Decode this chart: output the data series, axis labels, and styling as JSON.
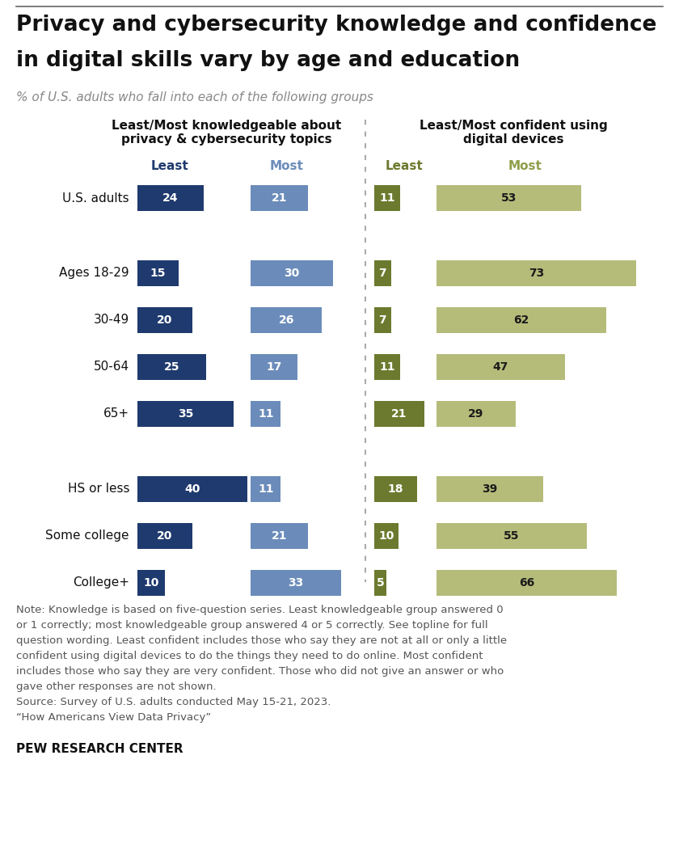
{
  "title_line1": "Privacy and cybersecurity knowledge and confidence",
  "title_line2": "in digital skills vary by age and education",
  "subtitle": "% of U.S. adults who fall into each of the following groups",
  "left_section_title": "Least/Most knowledgeable about\nprivacy & cybersecurity topics",
  "right_section_title": "Least/Most confident using\ndigital devices",
  "left_least_label": "Least",
  "left_most_label": "Most",
  "right_least_label": "Least",
  "right_most_label": "Most",
  "categories": [
    "U.S. adults",
    "",
    "Ages 18-29",
    "30-49",
    "50-64",
    "65+",
    "",
    "HS or less",
    "Some college",
    "College+"
  ],
  "left_least": [
    24,
    null,
    15,
    20,
    25,
    35,
    null,
    40,
    20,
    10
  ],
  "left_most": [
    21,
    null,
    30,
    26,
    17,
    11,
    null,
    11,
    21,
    33
  ],
  "right_least": [
    11,
    null,
    7,
    7,
    11,
    21,
    null,
    18,
    10,
    5
  ],
  "right_most": [
    53,
    null,
    73,
    62,
    47,
    29,
    null,
    39,
    55,
    66
  ],
  "color_left_least": "#1f3a6e",
  "color_left_most": "#6b8cba",
  "color_right_least": "#6b7a2e",
  "color_right_most": "#b5bc7a",
  "note_line1": "Note: Knowledge is based on five-question series. Least knowledgeable group answered 0",
  "note_line2": "or 1 correctly; most knowledgeable group answered 4 or 5 correctly. See topline for full",
  "note_line3": "question wording. Least confident includes those who say they are not at all or only a little",
  "note_line4": "confident using digital devices to do the things they need to do online. Most confident",
  "note_line5": "includes those who say they are very confident. Those who did not give an answer or who",
  "note_line6": "gave other responses are not shown.",
  "source_line": "Source: Survey of U.S. adults conducted May 15-21, 2023.",
  "quote_line": "“How Americans View Data Privacy”",
  "pew_line": "PEW RESEARCH CENTER",
  "bg_color": "#ffffff",
  "divider_color": "#aaaaaa",
  "note_color": "#555555",
  "label_color_dark": "#1a1a1a",
  "top_border_color": "#666666"
}
